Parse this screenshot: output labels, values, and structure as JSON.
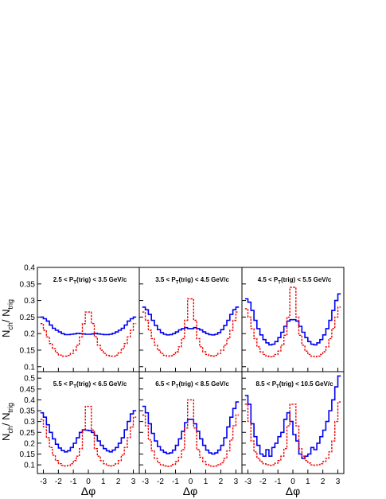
{
  "colors": {
    "blue_series": "#0000ee",
    "red_series": "#ee0000",
    "frame": "#000000"
  },
  "chart_data": [
    {
      "type": "line",
      "panel_label": [
        "2.5 < P",
        "T",
        "(trig) < 3.5 GeV/c"
      ],
      "x": [
        -3.1,
        -2.9,
        -2.7,
        -2.5,
        -2.3,
        -2.1,
        -1.9,
        -1.7,
        -1.5,
        -1.3,
        -1.1,
        -0.9,
        -0.7,
        -0.5,
        -0.3,
        -0.1,
        0.1,
        0.3,
        0.5,
        0.7,
        0.9,
        1.1,
        1.3,
        1.5,
        1.7,
        1.9,
        2.1,
        2.3,
        2.5,
        2.7,
        2.9,
        3.1
      ],
      "xlim": [
        -3.4,
        3.4
      ],
      "ylim": [
        0.085,
        0.4
      ],
      "yticks": [
        0.1,
        0.15,
        0.2,
        0.25,
        0.3,
        0.35,
        0.4
      ],
      "series": [
        {
          "values": [
            0.25,
            0.245,
            0.238,
            0.226,
            0.216,
            0.21,
            0.205,
            0.2,
            0.197,
            0.197,
            0.198,
            0.199,
            0.201,
            0.2,
            0.199,
            0.198,
            0.198,
            0.199,
            0.201,
            0.199,
            0.198,
            0.197,
            0.197,
            0.198,
            0.201,
            0.205,
            0.21,
            0.216,
            0.226,
            0.238,
            0.245,
            0.25
          ]
        },
        {
          "values": [
            0.23,
            0.21,
            0.19,
            0.17,
            0.155,
            0.143,
            0.135,
            0.132,
            0.132,
            0.134,
            0.14,
            0.15,
            0.165,
            0.19,
            0.23,
            0.265,
            0.265,
            0.23,
            0.19,
            0.165,
            0.15,
            0.14,
            0.134,
            0.132,
            0.132,
            0.135,
            0.143,
            0.155,
            0.17,
            0.19,
            0.21,
            0.23
          ]
        }
      ]
    },
    {
      "type": "line",
      "panel_label": [
        "3.5 < P",
        "T",
        "(trig) < 4.5 GeV/c"
      ],
      "x": [
        -3.1,
        -2.9,
        -2.7,
        -2.5,
        -2.3,
        -2.1,
        -1.9,
        -1.7,
        -1.5,
        -1.3,
        -1.1,
        -0.9,
        -0.7,
        -0.5,
        -0.3,
        -0.1,
        0.1,
        0.3,
        0.5,
        0.7,
        0.9,
        1.1,
        1.3,
        1.5,
        1.7,
        1.9,
        2.1,
        2.3,
        2.5,
        2.7,
        2.9,
        3.1
      ],
      "xlim": [
        -3.4,
        3.4
      ],
      "ylim": [
        0.085,
        0.4
      ],
      "yticks": [
        0.1,
        0.15,
        0.2,
        0.25,
        0.3,
        0.35,
        0.4
      ],
      "series": [
        {
          "values": [
            0.28,
            0.272,
            0.258,
            0.24,
            0.225,
            0.212,
            0.203,
            0.198,
            0.196,
            0.197,
            0.2,
            0.205,
            0.211,
            0.215,
            0.218,
            0.215,
            0.215,
            0.218,
            0.215,
            0.211,
            0.205,
            0.2,
            0.197,
            0.196,
            0.198,
            0.203,
            0.212,
            0.225,
            0.24,
            0.258,
            0.272,
            0.28
          ]
        },
        {
          "values": [
            0.265,
            0.24,
            0.21,
            0.185,
            0.165,
            0.15,
            0.14,
            0.134,
            0.132,
            0.133,
            0.137,
            0.145,
            0.16,
            0.185,
            0.24,
            0.305,
            0.305,
            0.24,
            0.185,
            0.16,
            0.145,
            0.137,
            0.133,
            0.132,
            0.134,
            0.14,
            0.15,
            0.165,
            0.185,
            0.21,
            0.24,
            0.265
          ]
        }
      ]
    },
    {
      "type": "line",
      "panel_label": [
        "4.5 < P",
        "T",
        "(trig) < 5.5 GeV/c"
      ],
      "x": [
        -3.1,
        -2.9,
        -2.7,
        -2.5,
        -2.3,
        -2.1,
        -1.9,
        -1.7,
        -1.5,
        -1.3,
        -1.1,
        -0.9,
        -0.7,
        -0.5,
        -0.3,
        -0.1,
        0.1,
        0.3,
        0.5,
        0.7,
        0.9,
        1.1,
        1.3,
        1.5,
        1.7,
        1.9,
        2.1,
        2.3,
        2.5,
        2.7,
        2.9,
        3.1
      ],
      "xlim": [
        -3.4,
        3.4
      ],
      "ylim": [
        0.085,
        0.4
      ],
      "yticks": [
        0.1,
        0.15,
        0.2,
        0.25,
        0.3,
        0.35,
        0.4
      ],
      "series": [
        {
          "values": [
            0.305,
            0.295,
            0.27,
            0.24,
            0.215,
            0.196,
            0.182,
            0.172,
            0.166,
            0.168,
            0.176,
            0.188,
            0.204,
            0.222,
            0.238,
            0.242,
            0.242,
            0.238,
            0.222,
            0.204,
            0.188,
            0.176,
            0.168,
            0.166,
            0.172,
            0.182,
            0.196,
            0.215,
            0.24,
            0.27,
            0.3,
            0.32
          ]
        },
        {
          "values": [
            0.275,
            0.25,
            0.215,
            0.185,
            0.16,
            0.145,
            0.137,
            0.132,
            0.13,
            0.132,
            0.137,
            0.147,
            0.165,
            0.195,
            0.25,
            0.34,
            0.34,
            0.25,
            0.195,
            0.165,
            0.147,
            0.137,
            0.132,
            0.13,
            0.132,
            0.137,
            0.145,
            0.16,
            0.185,
            0.215,
            0.25,
            0.28
          ]
        }
      ]
    },
    {
      "type": "line",
      "panel_label": [
        "5.5 < P",
        "T",
        "(trig) < 6.5 GeV/c"
      ],
      "x": [
        -3.1,
        -2.9,
        -2.7,
        -2.5,
        -2.3,
        -2.1,
        -1.9,
        -1.7,
        -1.5,
        -1.3,
        -1.1,
        -0.9,
        -0.7,
        -0.5,
        -0.3,
        -0.1,
        0.1,
        0.3,
        0.5,
        0.7,
        0.9,
        1.1,
        1.3,
        1.5,
        1.7,
        1.9,
        2.1,
        2.3,
        2.5,
        2.7,
        2.9,
        3.1
      ],
      "xlim": [
        -3.4,
        3.4
      ],
      "ylim": [
        0.06,
        0.53
      ],
      "yticks": [
        0.1,
        0.15,
        0.2,
        0.25,
        0.3,
        0.35,
        0.4,
        0.45,
        0.5
      ],
      "series": [
        {
          "values": [
            0.34,
            0.32,
            0.285,
            0.25,
            0.22,
            0.195,
            0.178,
            0.166,
            0.16,
            0.165,
            0.18,
            0.2,
            0.225,
            0.25,
            0.262,
            0.26,
            0.258,
            0.25,
            0.235,
            0.21,
            0.19,
            0.175,
            0.165,
            0.16,
            0.168,
            0.18,
            0.2,
            0.225,
            0.262,
            0.3,
            0.335,
            0.35
          ]
        },
        {
          "values": [
            0.31,
            0.275,
            0.225,
            0.18,
            0.145,
            0.12,
            0.105,
            0.098,
            0.095,
            0.097,
            0.105,
            0.12,
            0.14,
            0.175,
            0.26,
            0.37,
            0.37,
            0.26,
            0.175,
            0.14,
            0.12,
            0.105,
            0.097,
            0.095,
            0.098,
            0.105,
            0.12,
            0.145,
            0.18,
            0.225,
            0.275,
            0.32
          ]
        }
      ]
    },
    {
      "type": "line",
      "panel_label": [
        "6.5 < P",
        "T",
        "(trig) < 8.5 GeV/c"
      ],
      "x": [
        -3.1,
        -2.9,
        -2.7,
        -2.5,
        -2.3,
        -2.1,
        -1.9,
        -1.7,
        -1.5,
        -1.3,
        -1.1,
        -0.9,
        -0.7,
        -0.5,
        -0.3,
        -0.1,
        0.1,
        0.3,
        0.5,
        0.7,
        0.9,
        1.1,
        1.3,
        1.5,
        1.7,
        1.9,
        2.1,
        2.3,
        2.5,
        2.7,
        2.9,
        3.1
      ],
      "xlim": [
        -3.4,
        3.4
      ],
      "ylim": [
        0.06,
        0.53
      ],
      "yticks": [
        0.1,
        0.15,
        0.2,
        0.25,
        0.3,
        0.35,
        0.4,
        0.45,
        0.5
      ],
      "series": [
        {
          "values": [
            0.37,
            0.34,
            0.29,
            0.245,
            0.21,
            0.185,
            0.168,
            0.158,
            0.152,
            0.155,
            0.168,
            0.19,
            0.22,
            0.255,
            0.295,
            0.31,
            0.31,
            0.29,
            0.255,
            0.22,
            0.19,
            0.168,
            0.155,
            0.15,
            0.155,
            0.168,
            0.19,
            0.225,
            0.275,
            0.32,
            0.36,
            0.39
          ]
        },
        {
          "values": [
            0.33,
            0.28,
            0.215,
            0.165,
            0.13,
            0.11,
            0.1,
            0.095,
            0.093,
            0.095,
            0.102,
            0.115,
            0.135,
            0.17,
            0.27,
            0.4,
            0.4,
            0.27,
            0.17,
            0.135,
            0.115,
            0.102,
            0.095,
            0.093,
            0.095,
            0.1,
            0.11,
            0.13,
            0.165,
            0.215,
            0.28,
            0.33
          ]
        }
      ]
    },
    {
      "type": "line",
      "panel_label": [
        "8.5 < P",
        "T",
        "(trig) < 10.5 GeV/c"
      ],
      "x": [
        -3.1,
        -2.9,
        -2.7,
        -2.5,
        -2.3,
        -2.1,
        -1.9,
        -1.7,
        -1.5,
        -1.3,
        -1.1,
        -0.9,
        -0.7,
        -0.5,
        -0.3,
        -0.1,
        0.1,
        0.3,
        0.5,
        0.7,
        0.9,
        1.1,
        1.3,
        1.5,
        1.7,
        1.9,
        2.1,
        2.3,
        2.5,
        2.7,
        2.9,
        3.1
      ],
      "xlim": [
        -3.4,
        3.4
      ],
      "ylim": [
        0.06,
        0.53
      ],
      "yticks": [
        0.1,
        0.15,
        0.2,
        0.25,
        0.3,
        0.35,
        0.4,
        0.45,
        0.5
      ],
      "series": [
        {
          "values": [
            0.42,
            0.38,
            0.29,
            0.23,
            0.19,
            0.15,
            0.14,
            0.17,
            0.14,
            0.18,
            0.2,
            0.23,
            0.25,
            0.31,
            0.34,
            0.3,
            0.24,
            0.21,
            0.15,
            0.13,
            0.14,
            0.15,
            0.18,
            0.17,
            0.2,
            0.23,
            0.26,
            0.3,
            0.35,
            0.4,
            0.46,
            0.51
          ]
        },
        {
          "values": [
            0.38,
            0.3,
            0.21,
            0.16,
            0.13,
            0.115,
            0.105,
            0.1,
            0.098,
            0.1,
            0.108,
            0.12,
            0.14,
            0.175,
            0.28,
            0.38,
            0.38,
            0.28,
            0.175,
            0.14,
            0.12,
            0.108,
            0.1,
            0.098,
            0.1,
            0.105,
            0.115,
            0.13,
            0.16,
            0.21,
            0.3,
            0.39
          ]
        }
      ]
    }
  ],
  "x_tick_labels": [
    "-3",
    "-2",
    "-1",
    "0",
    "1",
    "2",
    "3"
  ],
  "x_axis_title": "Δφ",
  "y_axis_title": {
    "main": "N",
    "sub_main": "ch",
    "sep": "/ N",
    "sub_den": "trig"
  }
}
